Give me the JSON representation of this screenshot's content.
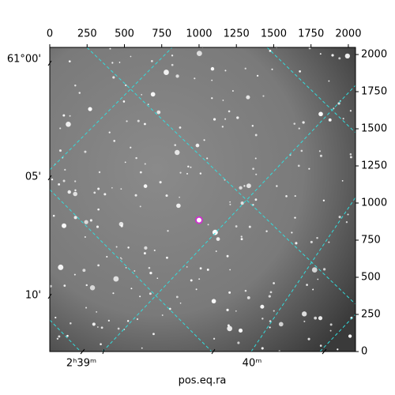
{
  "chart_data": {
    "type": "image",
    "xlabel": "pos.eq.ra",
    "xlim": [
      0,
      2048
    ],
    "xticks": [
      0,
      250,
      500,
      750,
      1000,
      1250,
      1500,
      1750,
      2000
    ],
    "ylim": [
      0,
      2048
    ],
    "yticks": [
      0,
      250,
      500,
      750,
      1000,
      1250,
      1500,
      1750,
      2000
    ],
    "ra_ticks": [
      "2ʰ39ᵐ",
      "40ᵐ"
    ],
    "dec_ticks": [
      "61°00'",
      "05'",
      "10'"
    ],
    "marker": {
      "x": 1000,
      "y": 885,
      "color": "#cc33cc"
    }
  }
}
